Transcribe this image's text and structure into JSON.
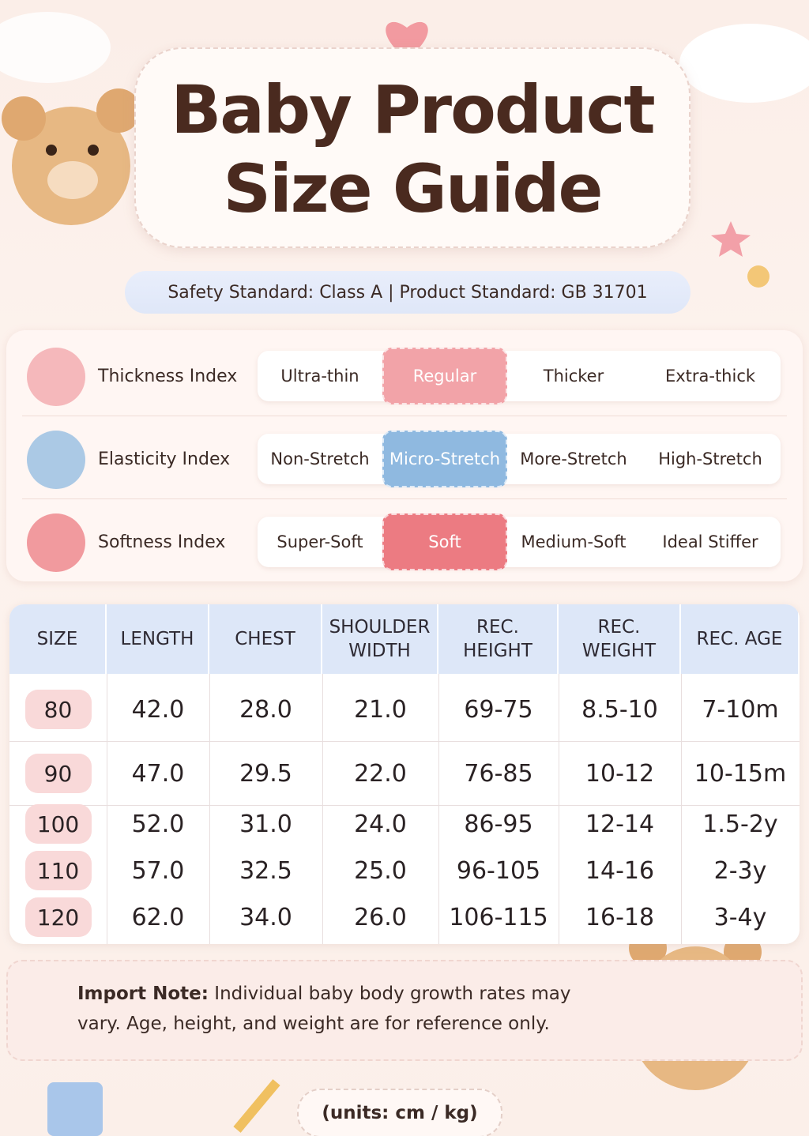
{
  "header": {
    "title_lines": [
      "Baby Product",
      "Size Guide"
    ]
  },
  "standard": "Safety Standard: Class A | Product Standard: GB 31701",
  "indices": [
    {
      "label": "Thickness Index",
      "options": [
        "Ultra-thin",
        "Regular",
        "Thicker",
        "Extra-thick"
      ],
      "selected": 1,
      "color": "#f2a3a8"
    },
    {
      "label": "Elasticity Index",
      "options": [
        "Non-Stretch",
        "Micro-Stretch",
        "More-Stretch",
        "High-Stretch"
      ],
      "selected": 1,
      "color": "#8fb9e0"
    },
    {
      "label": "Softness Index",
      "options": [
        "Super-Soft",
        "Soft",
        "Medium-Soft",
        "Ideal Stiffer"
      ],
      "selected": 1,
      "color": "#ec7b82"
    }
  ],
  "table": {
    "headers": [
      "SIZE",
      "LENGTH",
      "CHEST",
      "SHOULDER WIDTH",
      "REC. HEIGHT",
      "REC. WEIGHT",
      "REC. AGE"
    ],
    "rows": [
      [
        "80",
        "42.0",
        "28.0",
        "21.0",
        "69-75",
        "8.5-10",
        "7-10m"
      ],
      [
        "90",
        "47.0",
        "29.5",
        "22.0",
        "76-85",
        "10-12",
        "10-15m"
      ],
      [
        "100",
        "52.0",
        "31.0",
        "24.0",
        "86-95",
        "12-14",
        "1.5-2y"
      ],
      [
        "110",
        "57.0",
        "32.5",
        "25.0",
        "96-105",
        "14-16",
        "2-3y"
      ],
      [
        "120",
        "62.0",
        "34.0",
        "26.0",
        "106-115",
        "16-18",
        "3-4y"
      ]
    ]
  },
  "note": {
    "label": "Import Note:",
    "text": "Individual baby body growth rates may vary. Age, height, and weight are for reference only."
  },
  "units": "(units: cm / kg)"
}
